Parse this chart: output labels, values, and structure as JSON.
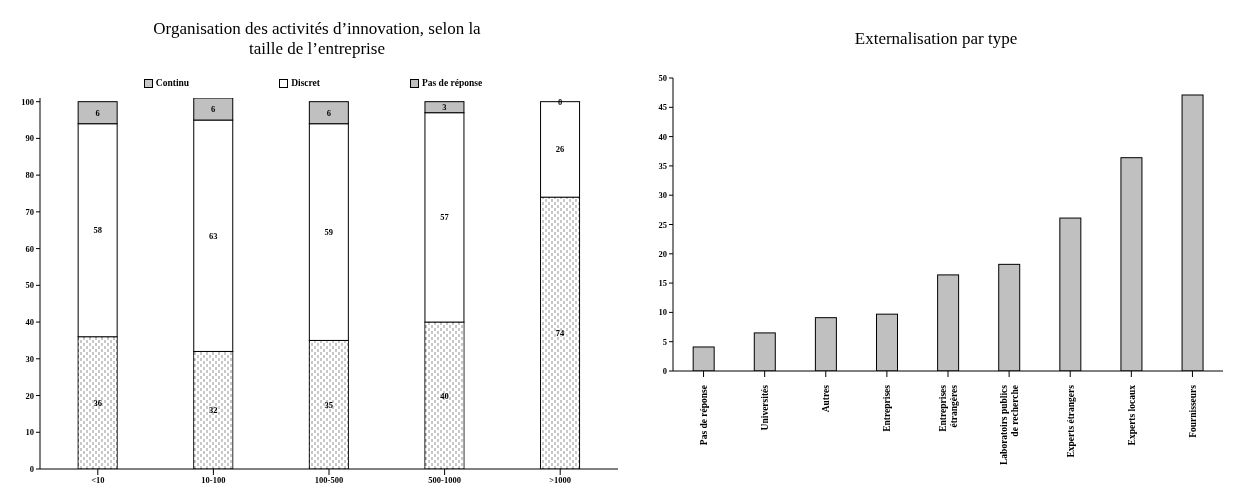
{
  "chart_data": [
    {
      "type": "bar",
      "title": "Organisation des activités d’innovation, selon la taille de l’entreprise",
      "categories": [
        "<10",
        "10-100",
        "100-500",
        "500-1000",
        ">1000"
      ],
      "stacked": true,
      "data_labels": true,
      "legend": "top",
      "ylim": [
        0,
        101
      ],
      "yticks": [
        0,
        10,
        20,
        30,
        40,
        50,
        60,
        70,
        80,
        90,
        100
      ],
      "series": [
        {
          "name": "Continu",
          "color": "#c8c8c8",
          "values": [
            36,
            32,
            35,
            40,
            74
          ]
        },
        {
          "name": "Discret",
          "color": "#ffffff",
          "values": [
            58,
            63,
            59,
            57,
            26
          ]
        },
        {
          "name": "Pas de réponse",
          "color": "#c0c0c0",
          "values": [
            6,
            6,
            6,
            3,
            0
          ]
        }
      ]
    },
    {
      "type": "bar",
      "title": "Externalisation par type",
      "categories": [
        "Pas de réponse",
        "Universités",
        "Autres",
        "Entreprises",
        "Entreprises étrangères",
        "Laboratoirs publics de recherche",
        "Experts étrangers",
        "Experts locaux",
        "Fournisseurs"
      ],
      "values": [
        4.1,
        6.5,
        9.1,
        9.7,
        16.4,
        18.2,
        26.1,
        36.4,
        47.1
      ],
      "color": "#c0c0c0",
      "ylim": [
        0,
        50
      ],
      "yticks": [
        0,
        5,
        10,
        15,
        20,
        25,
        30,
        35,
        40,
        45,
        50
      ]
    }
  ]
}
